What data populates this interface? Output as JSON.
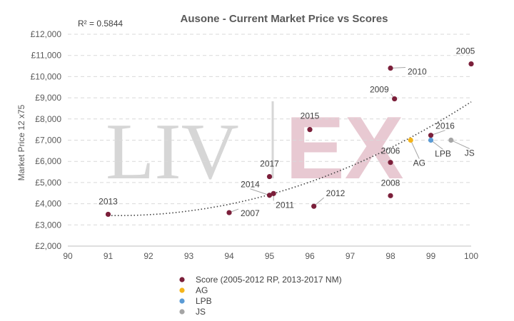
{
  "watermark": {
    "left": "LIV",
    "right": "EX"
  },
  "chart_data": {
    "type": "scatter",
    "title": "Ausone - Current Market Price vs Scores",
    "annotation": "R² = 0.5844",
    "xlabel": "",
    "ylabel": "Market Price 12 x75",
    "xlim": [
      90,
      100
    ],
    "ylim": [
      2000,
      12000
    ],
    "x_ticks": [
      "90",
      "91",
      "92",
      "93",
      "94",
      "95",
      "96",
      "97",
      "98",
      "99",
      "100"
    ],
    "y_ticks": [
      "£2,000",
      "£3,000",
      "£4,000",
      "£5,000",
      "£6,000",
      "£7,000",
      "£8,000",
      "£9,000",
      "£10,000",
      "£11,000",
      "£12,000"
    ],
    "grid": true,
    "legend_position": "bottom",
    "series": [
      {
        "name": "Score (2005-2012 RP, 2013-2017 NM)",
        "color": "#7b1f3a",
        "points": [
          {
            "label": "2005",
            "x": 100,
            "y": 10600
          },
          {
            "label": "2006",
            "x": 98,
            "y": 5950
          },
          {
            "label": "2007",
            "x": 94,
            "y": 3580
          },
          {
            "label": "2008",
            "x": 98,
            "y": 4380
          },
          {
            "label": "2009",
            "x": 98.1,
            "y": 8950
          },
          {
            "label": "2010",
            "x": 98,
            "y": 10400
          },
          {
            "label": "2011",
            "x": 95.1,
            "y": 4480
          },
          {
            "label": "2012",
            "x": 96.1,
            "y": 3880
          },
          {
            "label": "2013",
            "x": 91,
            "y": 3500
          },
          {
            "label": "2014",
            "x": 95,
            "y": 4400
          },
          {
            "label": "2015",
            "x": 96,
            "y": 7500
          },
          {
            "label": "2016",
            "x": 99,
            "y": 7230
          },
          {
            "label": "2017",
            "x": 95,
            "y": 5280
          }
        ]
      },
      {
        "name": "AG",
        "color": "#f4b41a",
        "points": [
          {
            "label": "AG",
            "x": 98.5,
            "y": 7000
          }
        ]
      },
      {
        "name": "LPB",
        "color": "#5b9bd5",
        "points": [
          {
            "label": "LPB",
            "x": 99,
            "y": 7000
          }
        ]
      },
      {
        "name": "JS",
        "color": "#a5a5a5",
        "points": [
          {
            "label": "JS",
            "x": 99.5,
            "y": 7000
          }
        ]
      }
    ],
    "trendline": {
      "type": "polynomial",
      "style": "dotted",
      "r_squared": 0.5844
    }
  }
}
